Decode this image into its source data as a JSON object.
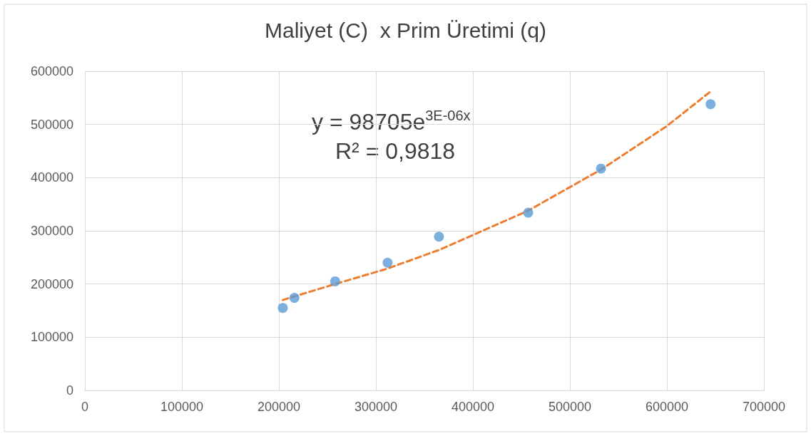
{
  "chart_data": {
    "type": "scatter",
    "title": "Maliyet (C)  x Prim Üretimi (q)",
    "xlim": [
      0,
      700000
    ],
    "xticks": [
      0,
      100000,
      200000,
      300000,
      400000,
      500000,
      600000,
      700000
    ],
    "ylim": [
      0,
      600000
    ],
    "yticks": [
      0,
      100000,
      200000,
      300000,
      400000,
      500000,
      600000
    ],
    "grid": true,
    "marker": "circle",
    "annotations": [
      "y = 98705e$^{3E-06x}$",
      "R² = 0,9818"
    ],
    "series": [
      {
        "color": "#5b9bd5",
        "x": [
          204000,
          216000,
          258000,
          312000,
          365000,
          457000,
          532000,
          645000
        ],
        "values": [
          155000,
          174000,
          205000,
          240000,
          289000,
          334000,
          417000,
          538000
        ]
      },
      {
        "type": "line",
        "color": "#ed7d31",
        "line_style": "dashed",
        "marker": "none",
        "x": [
          204000,
          258000,
          312000,
          365000,
          457000,
          532000,
          600000,
          645000
        ],
        "values": [
          170000,
          200000,
          229000,
          264000,
          338000,
          415000,
          497000,
          562000
        ]
      }
    ]
  }
}
